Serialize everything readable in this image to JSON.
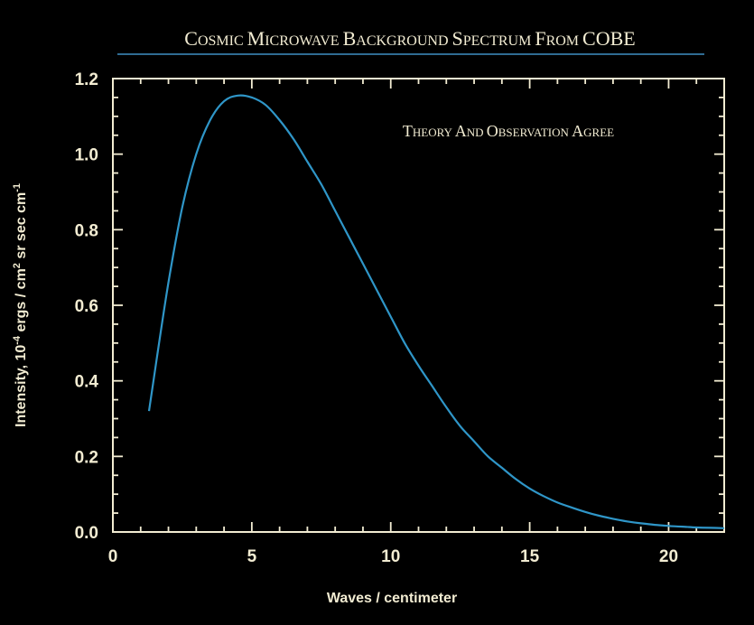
{
  "chart_data": {
    "type": "line",
    "title": "Cosmic Microwave Background Spectrum from COBE",
    "annotation": "Theory and observation agree",
    "xlabel": "Waves / centimeter",
    "ylabel_parts": [
      "Intensity, 10",
      "-4",
      " ergs / cm",
      "2",
      " sr sec cm",
      "-1"
    ],
    "xlim": [
      0,
      22
    ],
    "ylim": [
      0,
      1.2
    ],
    "xticks": [
      "0",
      "5",
      "10",
      "15",
      "20"
    ],
    "xtick_values": [
      0,
      5,
      10,
      15,
      20
    ],
    "yticks": [
      "0.0",
      "0.2",
      "0.4",
      "0.6",
      "0.8",
      "1.0",
      "1.2"
    ],
    "ytick_values": [
      0.0,
      0.2,
      0.4,
      0.6,
      0.8,
      1.0,
      1.2
    ],
    "grid": false,
    "series": [
      {
        "x": [
          1.3,
          1.5,
          2.0,
          2.5,
          3.0,
          3.5,
          4.0,
          4.5,
          5.0,
          5.5,
          6.0,
          6.5,
          7.0,
          7.5,
          8.0,
          8.5,
          9.0,
          9.5,
          10.0,
          10.5,
          11.0,
          11.5,
          12.0,
          12.5,
          13.0,
          13.5,
          14.0,
          14.5,
          15.0,
          15.5,
          16.0,
          16.5,
          17.0,
          17.5,
          18.0,
          18.5,
          19.0,
          19.5,
          20.0,
          20.5,
          21.0,
          21.5,
          22.0
        ],
        "y": [
          0.32,
          0.42,
          0.66,
          0.86,
          1.0,
          1.09,
          1.14,
          1.155,
          1.15,
          1.13,
          1.09,
          1.04,
          0.98,
          0.92,
          0.85,
          0.78,
          0.71,
          0.64,
          0.57,
          0.5,
          0.44,
          0.385,
          0.33,
          0.28,
          0.24,
          0.2,
          0.17,
          0.14,
          0.115,
          0.095,
          0.078,
          0.065,
          0.053,
          0.043,
          0.035,
          0.028,
          0.023,
          0.019,
          0.016,
          0.014,
          0.012,
          0.011,
          0.01
        ]
      }
    ],
    "colors": {
      "background": "#000000",
      "frame": "#f2ecd2",
      "curve": "#2f96c8",
      "title_rule": "#3f8fc4"
    }
  }
}
